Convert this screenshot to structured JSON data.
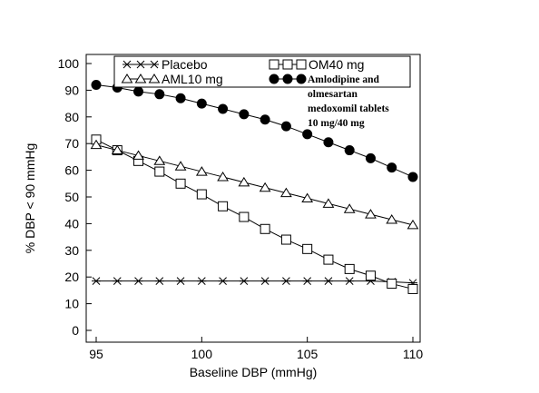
{
  "chart_data": {
    "type": "line",
    "xlabel": "Baseline DBP (mmHg)",
    "ylabel": "% DBP < 90 mmHg",
    "xlim": [
      95,
      110
    ],
    "ylim": [
      0,
      100
    ],
    "x_ticks": [
      95,
      100,
      105,
      110
    ],
    "y_ticks": [
      0,
      10,
      20,
      30,
      40,
      50,
      60,
      70,
      80,
      90,
      100
    ],
    "x": [
      95,
      96,
      97,
      98,
      99,
      100,
      101,
      102,
      103,
      104,
      105,
      106,
      107,
      108,
      109,
      110
    ],
    "legend_position": "top",
    "series": [
      {
        "name": "Placebo",
        "marker": "star",
        "values": [
          18.5,
          18.5,
          18.5,
          18.5,
          18.5,
          18.5,
          18.5,
          18.5,
          18.5,
          18.5,
          18.5,
          18.5,
          18.5,
          18.5,
          18.2,
          17.8
        ]
      },
      {
        "name": "OM40 mg",
        "marker": "square",
        "values": [
          71.5,
          67.5,
          63.5,
          59.5,
          55.0,
          51.0,
          46.5,
          42.5,
          38.0,
          34.0,
          30.5,
          26.5,
          23.0,
          20.5,
          17.5,
          15.5
        ]
      },
      {
        "name": "AML10 mg",
        "marker": "triangle",
        "values": [
          69.5,
          67.5,
          65.5,
          63.5,
          61.5,
          59.5,
          57.5,
          55.5,
          53.5,
          51.5,
          49.5,
          47.5,
          45.5,
          43.5,
          41.5,
          39.5
        ]
      },
      {
        "name": "Amlodipine and olmesartan medoxomil tablets 10 mg/40 mg",
        "name_lines": [
          "Amlodipine and",
          "olmesartan",
          "medoxomil tablets",
          "10 mg/40 mg"
        ],
        "marker": "filled-circle",
        "values": [
          92.0,
          91.0,
          89.5,
          88.5,
          87.0,
          85.0,
          83.0,
          81.0,
          79.0,
          76.5,
          73.5,
          70.5,
          67.5,
          64.5,
          61.0,
          57.5
        ]
      }
    ]
  }
}
